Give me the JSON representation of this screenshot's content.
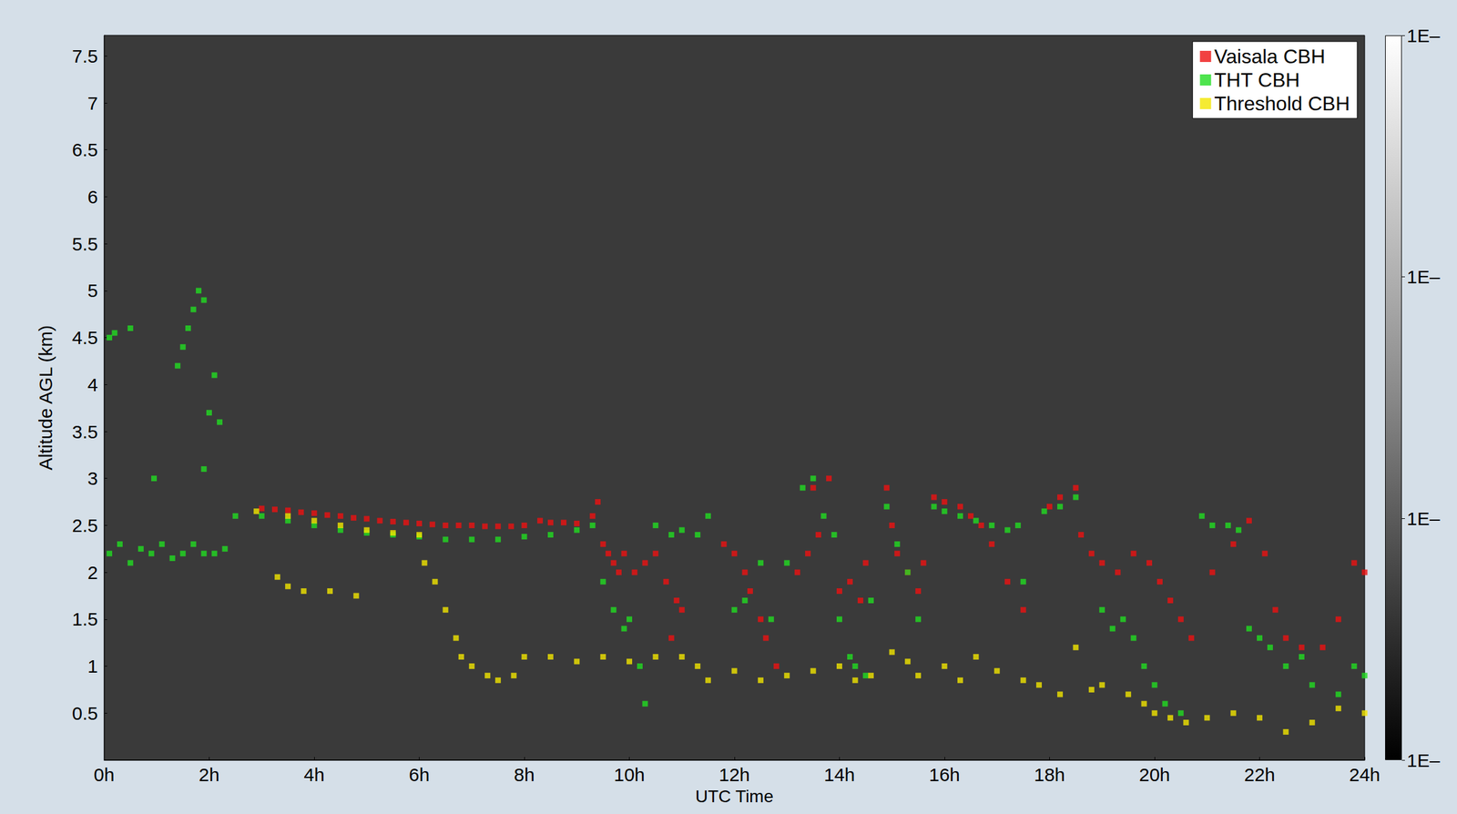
{
  "chart_data": {
    "type": "scatter",
    "xlabel": "UTC Time",
    "ylabel": "Altitude AGL (km)",
    "xlim": [
      0,
      24
    ],
    "xticks": [
      {
        "value": 0,
        "label": "0h"
      },
      {
        "value": 2,
        "label": "2h"
      },
      {
        "value": 4,
        "label": "4h"
      },
      {
        "value": 6,
        "label": "6h"
      },
      {
        "value": 8,
        "label": "8h"
      },
      {
        "value": 10,
        "label": "10h"
      },
      {
        "value": 12,
        "label": "12h"
      },
      {
        "value": 14,
        "label": "14h"
      },
      {
        "value": 16,
        "label": "16h"
      },
      {
        "value": 18,
        "label": "18h"
      },
      {
        "value": 20,
        "label": "20h"
      },
      {
        "value": 22,
        "label": "22h"
      },
      {
        "value": 24,
        "label": "24h"
      }
    ],
    "ylim": [
      0,
      7.72
    ],
    "yticks": [
      0.5,
      1,
      1.5,
      2,
      2.5,
      3,
      3.5,
      4,
      4.5,
      5,
      5.5,
      6,
      6.5,
      7,
      7.5
    ],
    "grid": false,
    "legend": "upper right",
    "marker": "square",
    "colorbar": {
      "range": [
        0,
        3
      ],
      "ticks": [
        {
          "value": 0,
          "label": "1E–"
        },
        {
          "value": 1,
          "label": "1E–"
        },
        {
          "value": 2,
          "label": "1E–"
        },
        {
          "value": 3,
          "label": "1E–"
        }
      ]
    },
    "series": [
      {
        "name": "Vaisala CBH",
        "color": "#ee1111",
        "x": [
          3,
          3.25,
          3.5,
          3.75,
          4,
          4.25,
          4.5,
          4.75,
          5,
          5.25,
          5.5,
          5.75,
          6,
          6.25,
          6.5,
          6.75,
          7,
          7.25,
          7.5,
          7.75,
          8,
          8.3,
          8.5,
          8.75,
          9,
          9.3,
          9.4,
          9.5,
          9.6,
          9.7,
          9.8,
          9.9,
          10.1,
          10.3,
          10.5,
          10.7,
          10.9,
          11,
          10.8,
          11.8,
          12,
          12.2,
          12.3,
          12.5,
          12.6,
          12.8,
          13.2,
          13.4,
          13.6,
          13.5,
          13.8,
          14,
          14.2,
          14.4,
          14.5,
          14.9,
          15,
          15.1,
          15.3,
          15.5,
          15.6,
          15.8,
          16,
          16.3,
          16.5,
          16.7,
          16.9,
          17.2,
          17.5,
          18,
          18.2,
          18.5,
          18.6,
          18.8,
          19,
          19.3,
          19.6,
          19.9,
          20.1,
          20.3,
          20.5,
          20.7,
          21.1,
          21.5,
          21.8,
          22.1,
          22.3,
          22.5,
          22.8,
          23.2,
          23.5,
          23.8,
          24
        ],
        "values": [
          2.68,
          2.67,
          2.66,
          2.64,
          2.63,
          2.61,
          2.6,
          2.58,
          2.57,
          2.55,
          2.54,
          2.53,
          2.52,
          2.51,
          2.5,
          2.5,
          2.5,
          2.49,
          2.49,
          2.49,
          2.5,
          2.55,
          2.53,
          2.53,
          2.52,
          2.6,
          2.75,
          2.3,
          2.2,
          2.1,
          2.0,
          2.2,
          2.0,
          2.1,
          2.2,
          1.9,
          1.7,
          1.6,
          1.3,
          2.3,
          2.2,
          2.0,
          1.8,
          1.5,
          1.3,
          1.0,
          2.0,
          2.2,
          2.4,
          2.9,
          3.0,
          1.8,
          1.9,
          1.7,
          2.1,
          2.9,
          2.5,
          2.2,
          2.0,
          1.8,
          2.1,
          2.8,
          2.75,
          2.7,
          2.6,
          2.5,
          2.3,
          1.9,
          1.6,
          2.7,
          2.8,
          2.9,
          2.4,
          2.2,
          2.1,
          2.0,
          2.2,
          2.1,
          1.9,
          1.7,
          1.5,
          1.3,
          2.0,
          2.3,
          2.55,
          2.2,
          1.6,
          1.3,
          1.2,
          1.2,
          1.5,
          2.1,
          2.0
        ]
      },
      {
        "name": "THT CBH",
        "color": "#22dd22",
        "x": [
          0.1,
          0.3,
          0.5,
          0.7,
          0.9,
          1.1,
          1.3,
          1.5,
          1.7,
          1.9,
          2.1,
          2.3,
          0.1,
          0.2,
          0.5,
          0.95,
          1.4,
          1.5,
          1.6,
          1.7,
          1.8,
          1.9,
          1.9,
          2.0,
          2.1,
          2.2,
          2.5,
          3,
          3.5,
          4,
          4.5,
          5,
          5.5,
          6,
          6.5,
          7,
          7.5,
          8,
          8.5,
          9,
          9.3,
          9.5,
          9.7,
          9.9,
          10,
          10.2,
          10.3,
          10.5,
          10.8,
          11,
          11.3,
          11.5,
          12,
          12.2,
          12.5,
          12.7,
          13,
          13.3,
          13.5,
          13.7,
          13.9,
          14,
          14.2,
          14.3,
          14.5,
          14.6,
          14.9,
          15.1,
          15.3,
          15.5,
          15.8,
          16,
          16.3,
          16.6,
          16.9,
          17.2,
          17.4,
          17.5,
          17.9,
          18.2,
          18.5,
          19,
          19.2,
          19.4,
          19.6,
          19.8,
          20,
          20.2,
          20.5,
          20.9,
          21.1,
          21.4,
          21.6,
          21.8,
          22,
          22.2,
          22.5,
          22.8,
          23,
          23.5,
          23.8,
          24
        ],
        "values": [
          2.2,
          2.3,
          2.1,
          2.25,
          2.2,
          2.3,
          2.15,
          2.2,
          2.3,
          2.2,
          2.2,
          2.25,
          4.5,
          4.55,
          4.6,
          3.0,
          4.2,
          4.4,
          4.6,
          4.8,
          5.0,
          4.9,
          3.1,
          3.7,
          4.1,
          3.6,
          2.6,
          2.6,
          2.55,
          2.5,
          2.45,
          2.42,
          2.4,
          2.38,
          2.35,
          2.35,
          2.35,
          2.38,
          2.4,
          2.45,
          2.5,
          1.9,
          1.6,
          1.4,
          1.5,
          1.0,
          0.6,
          2.5,
          2.4,
          2.45,
          2.4,
          2.6,
          1.6,
          1.7,
          2.1,
          1.5,
          2.1,
          2.9,
          3.0,
          2.6,
          2.4,
          1.5,
          1.1,
          1.0,
          0.9,
          1.7,
          2.7,
          2.3,
          2.0,
          1.5,
          2.7,
          2.65,
          2.6,
          2.55,
          2.5,
          2.45,
          2.5,
          1.9,
          2.65,
          2.7,
          2.8,
          1.6,
          1.4,
          1.5,
          1.3,
          1.0,
          0.8,
          0.6,
          0.5,
          2.6,
          2.5,
          2.5,
          2.45,
          1.4,
          1.3,
          1.2,
          1.0,
          1.1,
          0.8,
          0.7,
          1.0,
          0.9
        ]
      },
      {
        "name": "Threshold CBH",
        "color": "#f2e600",
        "x": [
          2.9,
          3.5,
          4,
          4.5,
          5,
          5.5,
          6,
          3.3,
          3.5,
          3.8,
          4.3,
          4.8,
          6.1,
          6.3,
          6.5,
          6.7,
          6.8,
          7,
          7.3,
          7.5,
          7.8,
          8,
          8.5,
          9,
          9.5,
          10,
          10.5,
          11,
          11.3,
          11.5,
          12,
          12.5,
          13,
          13.5,
          14,
          14.3,
          14.6,
          15,
          15.3,
          15.5,
          16,
          16.3,
          16.6,
          17,
          17.5,
          17.8,
          18.2,
          18.5,
          18.8,
          19,
          19.5,
          19.8,
          20,
          20.3,
          20.6,
          21,
          21.5,
          22,
          22.5,
          23,
          23.5,
          24
        ],
        "values": [
          2.65,
          2.6,
          2.55,
          2.5,
          2.45,
          2.42,
          2.4,
          1.95,
          1.85,
          1.8,
          1.8,
          1.75,
          2.1,
          1.9,
          1.6,
          1.3,
          1.1,
          1.0,
          0.9,
          0.85,
          0.9,
          1.1,
          1.1,
          1.05,
          1.1,
          1.05,
          1.1,
          1.1,
          1.0,
          0.85,
          0.95,
          0.85,
          0.9,
          0.95,
          1.0,
          0.85,
          0.9,
          1.15,
          1.05,
          0.9,
          1.0,
          0.85,
          1.1,
          0.95,
          0.85,
          0.8,
          0.7,
          1.2,
          0.75,
          0.8,
          0.7,
          0.6,
          0.5,
          0.45,
          0.4,
          0.45,
          0.5,
          0.45,
          0.3,
          0.4,
          0.55,
          0.5
        ]
      }
    ]
  }
}
